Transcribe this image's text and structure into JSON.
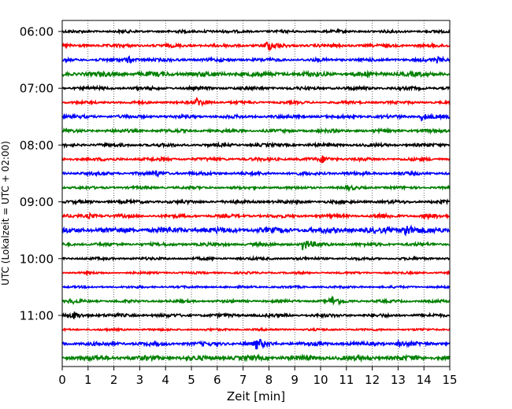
{
  "chart_data": {
    "type": "line",
    "title": "",
    "xlabel": "Zeit  [min]",
    "ylabel": "UTC (Lokalzeit = UTC + 02:00)",
    "xlim": [
      0,
      15
    ],
    "x_ticks": [
      "0",
      "1",
      "2",
      "3",
      "4",
      "5",
      "6",
      "7",
      "8",
      "9",
      "10",
      "11",
      "12",
      "13",
      "14",
      "15"
    ],
    "y_tick_labels": [
      "06:00",
      "07:00",
      "08:00",
      "09:00",
      "10:00",
      "11:00"
    ],
    "grid": "vertical dotted",
    "trace_interval_min": 15,
    "trace_colors": [
      "#000000",
      "#ff0000",
      "#0000ff",
      "#008000"
    ],
    "traces": [
      {
        "start": "06:00",
        "color": "#000000",
        "amplitude": 0.25,
        "events": [
          {
            "minute": 5.5,
            "amp": 0.2
          }
        ]
      },
      {
        "start": "06:15",
        "color": "#ff0000",
        "amplitude": 0.3,
        "events": [
          {
            "minute": 7.9,
            "amp": 0.9
          }
        ]
      },
      {
        "start": "06:30",
        "color": "#0000ff",
        "amplitude": 0.3,
        "events": [
          {
            "minute": 2.5,
            "amp": 0.6
          },
          {
            "minute": 14.5,
            "amp": 0.4
          }
        ]
      },
      {
        "start": "06:45",
        "color": "#008000",
        "amplitude": 0.45,
        "events": []
      },
      {
        "start": "07:00",
        "color": "#000000",
        "amplitude": 0.3,
        "events": []
      },
      {
        "start": "07:15",
        "color": "#ff0000",
        "amplitude": 0.25,
        "events": [
          {
            "minute": 5.2,
            "amp": 0.8
          }
        ]
      },
      {
        "start": "07:30",
        "color": "#0000ff",
        "amplitude": 0.3,
        "events": [
          {
            "minute": 13.9,
            "amp": 0.6
          }
        ]
      },
      {
        "start": "07:45",
        "color": "#008000",
        "amplitude": 0.3,
        "events": []
      },
      {
        "start": "08:00",
        "color": "#000000",
        "amplitude": 0.3,
        "events": []
      },
      {
        "start": "08:15",
        "color": "#ff0000",
        "amplitude": 0.3,
        "events": [
          {
            "minute": 10.0,
            "amp": 0.6
          }
        ]
      },
      {
        "start": "08:30",
        "color": "#0000ff",
        "amplitude": 0.3,
        "events": [
          {
            "minute": 3.6,
            "amp": 0.4
          }
        ]
      },
      {
        "start": "08:45",
        "color": "#008000",
        "amplitude": 0.25,
        "events": [
          {
            "minute": 11.0,
            "amp": 0.35
          }
        ]
      },
      {
        "start": "09:00",
        "color": "#000000",
        "amplitude": 0.3,
        "events": []
      },
      {
        "start": "09:15",
        "color": "#ff0000",
        "amplitude": 0.3,
        "events": [
          {
            "minute": 1.0,
            "amp": 0.4
          },
          {
            "minute": 12.2,
            "amp": 0.4
          },
          {
            "minute": 14.0,
            "amp": 0.4
          }
        ]
      },
      {
        "start": "09:30",
        "color": "#0000ff",
        "amplitude": 0.5,
        "events": [
          {
            "minute": 13.2,
            "amp": 1.4
          }
        ]
      },
      {
        "start": "09:45",
        "color": "#008000",
        "amplitude": 0.3,
        "events": [
          {
            "minute": 9.3,
            "amp": 1.0
          }
        ]
      },
      {
        "start": "10:00",
        "color": "#000000",
        "amplitude": 0.25,
        "events": []
      },
      {
        "start": "10:15",
        "color": "#ff0000",
        "amplitude": 0.2,
        "events": []
      },
      {
        "start": "10:30",
        "color": "#0000ff",
        "amplitude": 0.2,
        "events": []
      },
      {
        "start": "10:45",
        "color": "#008000",
        "amplitude": 0.25,
        "events": [
          {
            "minute": 10.4,
            "amp": 0.9
          },
          {
            "minute": 0.3,
            "amp": 0.3
          }
        ]
      },
      {
        "start": "11:00",
        "color": "#000000",
        "amplitude": 0.3,
        "events": [
          {
            "minute": 0.4,
            "amp": 0.6
          }
        ]
      },
      {
        "start": "11:15",
        "color": "#ff0000",
        "amplitude": 0.2,
        "events": []
      },
      {
        "start": "11:30",
        "color": "#0000ff",
        "amplitude": 0.35,
        "events": [
          {
            "minute": 7.5,
            "amp": 0.9
          },
          {
            "minute": 13.0,
            "amp": 0.4
          }
        ]
      },
      {
        "start": "11:45",
        "color": "#008000",
        "amplitude": 0.45,
        "events": []
      }
    ]
  }
}
